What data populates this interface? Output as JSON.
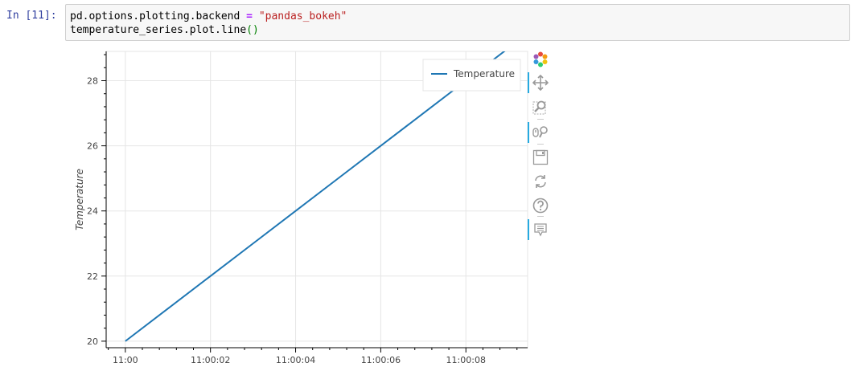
{
  "cell": {
    "prompt": "In [11]:",
    "code": {
      "line1_pre": "pd.options.plotting.backend ",
      "line1_eq": "=",
      "line1_space": " ",
      "line1_str": "\"pandas_bokeh\"",
      "line2_pre": "temperature_series.plot.line",
      "line2_paren": "()"
    }
  },
  "toolbar": {
    "tools": [
      {
        "icon": "bokeh-logo-icon",
        "active": false
      },
      {
        "icon": "pan-icon",
        "active": true
      },
      {
        "icon": "box-zoom-icon",
        "active": false
      },
      {
        "icon": "wheel-zoom-icon",
        "active": true
      },
      {
        "icon": "save-icon",
        "active": false
      },
      {
        "icon": "reset-icon",
        "active": false
      },
      {
        "icon": "help-icon",
        "active": false
      },
      {
        "icon": "hover-icon",
        "active": true
      }
    ]
  },
  "chart_data": {
    "type": "line",
    "title": "",
    "xlabel": "",
    "ylabel": "Temperature",
    "x_ticks": [
      "11:00",
      "11:00:02",
      "11:00:04",
      "11:00:06",
      "11:00:08"
    ],
    "x_tick_seconds": [
      0,
      2,
      4,
      6,
      8
    ],
    "y_ticks": [
      20,
      22,
      24,
      26,
      28
    ],
    "xlim_seconds": [
      -0.45,
      9.45
    ],
    "ylim": [
      19.8,
      28.9
    ],
    "grid": true,
    "legend_position": "top-right",
    "series": [
      {
        "name": "Temperature",
        "color": "#1f77b4",
        "x_seconds": [
          0,
          1,
          2,
          3,
          4,
          5,
          6,
          7,
          8,
          9
        ],
        "values": [
          20,
          21,
          22,
          23,
          24,
          25,
          26,
          27,
          28,
          29
        ]
      }
    ]
  }
}
